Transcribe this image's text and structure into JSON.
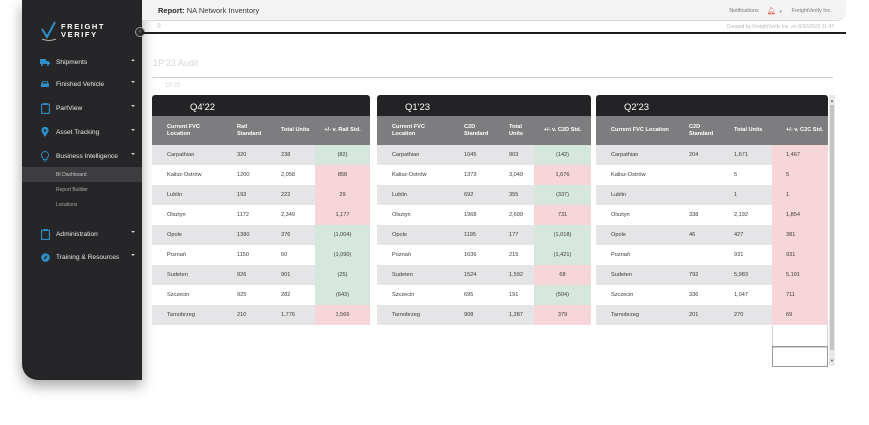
{
  "brand": {
    "line1": "FREIGHT",
    "line2": "VERIFY",
    "accent": "#2f8fc9"
  },
  "sidebar": {
    "collapse_glyph": "‹",
    "items": [
      {
        "label": "Shipments",
        "icon": "truck-icon",
        "chevron": "up"
      },
      {
        "label": "Finished Vehicle",
        "icon": "car-icon",
        "chevron": "down"
      },
      {
        "label": "PartView",
        "icon": "clipboard-icon",
        "chevron": "down"
      },
      {
        "label": "Asset Tracking",
        "icon": "map-pin-icon",
        "chevron": "down"
      },
      {
        "label": "Business Intelligence",
        "icon": "lightbulb-icon",
        "chevron": "down"
      },
      {
        "label": "Administration",
        "icon": "clipboard-icon",
        "chevron": "down"
      },
      {
        "label": "Training & Resources",
        "icon": "compass-icon",
        "chevron": "down"
      }
    ],
    "bi_subitems": [
      {
        "label": "BI Dashboard",
        "active": true
      },
      {
        "label": "Report Builder",
        "active": false
      },
      {
        "label": "Locations",
        "active": false
      }
    ]
  },
  "header": {
    "report_prefix": "Report:",
    "report_name": "NA Network Inventory",
    "notifications_label": "Notifications",
    "org_name": "FreightVerify Inc.",
    "created_text": "Created by FreightVerify Inc. on 6/30/2023 11:47",
    "print_glyph": "⎙"
  },
  "content": {
    "heading": "1P'23 Audit",
    "subheading": "1P'23"
  },
  "tables": [
    {
      "quarter": "Q4'22",
      "columns": [
        "Current FVC Location",
        "Rail Standard",
        "Total Units",
        "+/- v. Rail Std."
      ],
      "rows": [
        [
          "Carpathian",
          "320",
          "238",
          "(82)",
          "neg"
        ],
        [
          "Kalisz-Ostrów",
          "1200",
          "2,058",
          "858",
          "pos"
        ],
        [
          "Lublin",
          "193",
          "222",
          "29",
          "pos"
        ],
        [
          "Olsztyn",
          "1172",
          "2,349",
          "1,177",
          "pos"
        ],
        [
          "Opole",
          "1380",
          "376",
          "(1,004)",
          "neg"
        ],
        [
          "Poznań",
          "1150",
          "60",
          "(1,090)",
          "neg"
        ],
        [
          "Sudeten",
          "926",
          "901",
          "(25)",
          "neg"
        ],
        [
          "Szczecin",
          "925",
          "282",
          "(643)",
          "neg"
        ],
        [
          "Tarnobrzeg",
          "210",
          "1,776",
          "1,566",
          "pos"
        ]
      ]
    },
    {
      "quarter": "Q1'23",
      "columns": [
        "Current FVC Location",
        "C2D Standard",
        "Total Units",
        "+/- v. C2D Std."
      ],
      "rows": [
        [
          "Carpathian",
          "1045",
          "903",
          "(142)",
          "neg"
        ],
        [
          "Kalisz-Ostrów",
          "1373",
          "3,049",
          "1,676",
          "pos"
        ],
        [
          "Lublin",
          "692",
          "355",
          "(337)",
          "neg"
        ],
        [
          "Olsztyn",
          "1968",
          "2,699",
          "731",
          "pos"
        ],
        [
          "Opole",
          "1195",
          "177",
          "(1,018)",
          "neg"
        ],
        [
          "Poznań",
          "1636",
          "215",
          "(1,421)",
          "neg"
        ],
        [
          "Sudeten",
          "1524",
          "1,592",
          "68",
          "pos"
        ],
        [
          "Szczecin",
          "695",
          "191",
          "(504)",
          "neg"
        ],
        [
          "Tarnobrzeg",
          "908",
          "1,287",
          "379",
          "pos"
        ]
      ]
    },
    {
      "quarter": "Q2'23",
      "columns": [
        "Current FVC Location",
        "C2D Standard",
        "Total Units",
        "+/- v. C2C Std."
      ],
      "rows": [
        [
          "Carpathian",
          "204",
          "1,671",
          "1,467",
          "pos"
        ],
        [
          "Kalisz-Ostrów",
          "",
          "5",
          "5",
          "pos"
        ],
        [
          "Lublin",
          "",
          "1",
          "1",
          "pos"
        ],
        [
          "Olsztyn",
          "338",
          "2,192",
          "1,854",
          "pos"
        ],
        [
          "Opole",
          "46",
          "427",
          "381",
          "pos"
        ],
        [
          "Poznań",
          "",
          "931",
          "931",
          "pos"
        ],
        [
          "Sudeten",
          "792",
          "5,983",
          "5,191",
          "pos"
        ],
        [
          "Szczecin",
          "336",
          "1,047",
          "711",
          "pos"
        ],
        [
          "Tarnobrzeg",
          "201",
          "270",
          "69",
          "pos"
        ]
      ]
    }
  ],
  "colors": {
    "sidebar_bg": "#262628",
    "table_title_bg": "#232325",
    "table_header_bg": "#7d7c7e",
    "negative_delta": "#d6e8de",
    "positive_delta": "#f7d6da",
    "notification_bell": "#e05050"
  }
}
